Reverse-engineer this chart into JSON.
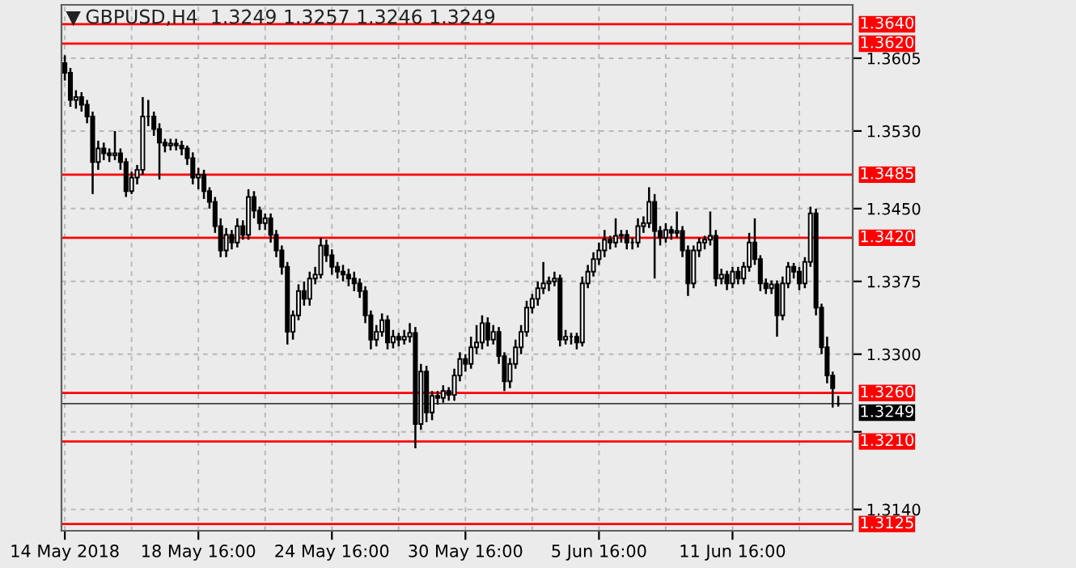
{
  "chart_data": {
    "type": "candlestick",
    "title": "GBPUSD,H4  1.3249 1.3257 1.3246 1.3249",
    "categories": [
      "14 May 2018",
      null,
      null,
      null,
      null,
      null,
      null,
      null,
      null,
      null,
      null,
      null,
      null,
      null,
      null,
      null,
      null,
      null,
      null,
      null,
      null,
      null,
      null,
      null,
      "18 May 16:00",
      null,
      null,
      null,
      null,
      null,
      null,
      null,
      null,
      null,
      null,
      null,
      null,
      null,
      null,
      null,
      null,
      null,
      null,
      null,
      null,
      null,
      null,
      null,
      "24 May 16:00",
      null,
      null,
      null,
      null,
      null,
      null,
      null,
      null,
      null,
      null,
      null,
      null,
      null,
      null,
      null,
      null,
      null,
      null,
      null,
      null,
      null,
      null,
      null,
      "30 May 16:00",
      null,
      null,
      null,
      null,
      null,
      null,
      null,
      null,
      null,
      null,
      null,
      null,
      null,
      null,
      null,
      null,
      null,
      null,
      null,
      null,
      null,
      null,
      null,
      "5 Jun 16:00",
      null,
      null,
      null,
      null,
      null,
      null,
      null,
      null,
      null,
      null,
      null,
      null,
      null,
      null,
      null,
      null,
      null,
      null,
      null,
      null,
      null,
      null,
      null,
      "11 Jun 16:00",
      null,
      null,
      null,
      null,
      null,
      null,
      null,
      null,
      null,
      null,
      null,
      null,
      null,
      null,
      null,
      null,
      null,
      null,
      null
    ],
    "ohlc": [
      [
        1.36,
        1.3608,
        1.3582,
        1.359
      ],
      [
        1.359,
        1.3595,
        1.3555,
        1.3562
      ],
      [
        1.3562,
        1.3572,
        1.3553,
        1.3565
      ],
      [
        1.3565,
        1.357,
        1.355,
        1.3557
      ],
      [
        1.3557,
        1.3562,
        1.3538,
        1.3545
      ],
      [
        1.3545,
        1.355,
        1.3465,
        1.3498
      ],
      [
        1.3498,
        1.352,
        1.349,
        1.3512
      ],
      [
        1.3512,
        1.3518,
        1.35,
        1.3507
      ],
      [
        1.3507,
        1.3512,
        1.3498,
        1.3505
      ],
      [
        1.3505,
        1.353,
        1.35,
        1.3507
      ],
      [
        1.3507,
        1.3512,
        1.349,
        1.3498
      ],
      [
        1.3498,
        1.3502,
        1.3462,
        1.3468
      ],
      [
        1.3468,
        1.3488,
        1.3465,
        1.3482
      ],
      [
        1.3482,
        1.3495,
        1.3475,
        1.349
      ],
      [
        1.349,
        1.3565,
        1.3485,
        1.3545
      ],
      [
        1.3545,
        1.3562,
        1.3535,
        1.3545
      ],
      [
        1.3545,
        1.355,
        1.3525,
        1.3532
      ],
      [
        1.3532,
        1.3538,
        1.348,
        1.3518
      ],
      [
        1.3518,
        1.3522,
        1.3508,
        1.3515
      ],
      [
        1.3515,
        1.3522,
        1.351,
        1.3517
      ],
      [
        1.3517,
        1.3522,
        1.351,
        1.3515
      ],
      [
        1.3515,
        1.352,
        1.3505,
        1.3512
      ],
      [
        1.3512,
        1.3515,
        1.3495,
        1.3502
      ],
      [
        1.3502,
        1.3508,
        1.3475,
        1.3482
      ],
      [
        1.3482,
        1.3492,
        1.347,
        1.3485
      ],
      [
        1.3485,
        1.349,
        1.346,
        1.3468
      ],
      [
        1.3468,
        1.3472,
        1.345,
        1.3457
      ],
      [
        1.3457,
        1.3462,
        1.3425,
        1.3432
      ],
      [
        1.3432,
        1.344,
        1.34,
        1.3407
      ],
      [
        1.3407,
        1.343,
        1.34,
        1.3423
      ],
      [
        1.3423,
        1.3428,
        1.3408,
        1.3415
      ],
      [
        1.3415,
        1.344,
        1.341,
        1.3432
      ],
      [
        1.3432,
        1.3438,
        1.3418,
        1.3423
      ],
      [
        1.3423,
        1.347,
        1.3418,
        1.3462
      ],
      [
        1.3462,
        1.3468,
        1.344,
        1.3448
      ],
      [
        1.3448,
        1.3452,
        1.3428,
        1.3435
      ],
      [
        1.3435,
        1.3445,
        1.3428,
        1.344
      ],
      [
        1.344,
        1.3445,
        1.3415,
        1.3423
      ],
      [
        1.3423,
        1.3428,
        1.34,
        1.3407
      ],
      [
        1.3407,
        1.3412,
        1.3382,
        1.339
      ],
      [
        1.339,
        1.3395,
        1.331,
        1.3323
      ],
      [
        1.3323,
        1.3345,
        1.3315,
        1.334
      ],
      [
        1.334,
        1.3372,
        1.3335,
        1.3365
      ],
      [
        1.3365,
        1.3375,
        1.335,
        1.3357
      ],
      [
        1.3357,
        1.3385,
        1.335,
        1.3378
      ],
      [
        1.3378,
        1.339,
        1.3372,
        1.3382
      ],
      [
        1.3382,
        1.342,
        1.3378,
        1.3412
      ],
      [
        1.3412,
        1.3418,
        1.3395,
        1.3402
      ],
      [
        1.3402,
        1.3408,
        1.3382,
        1.339
      ],
      [
        1.339,
        1.3395,
        1.3378,
        1.3385
      ],
      [
        1.3385,
        1.3392,
        1.3375,
        1.3382
      ],
      [
        1.3382,
        1.3388,
        1.337,
        1.3378
      ],
      [
        1.3378,
        1.3385,
        1.3365,
        1.3373
      ],
      [
        1.3373,
        1.3378,
        1.3358,
        1.3365
      ],
      [
        1.3365,
        1.337,
        1.3332,
        1.334
      ],
      [
        1.334,
        1.3345,
        1.3305,
        1.3315
      ],
      [
        1.3315,
        1.333,
        1.3308,
        1.3323
      ],
      [
        1.3323,
        1.3342,
        1.3318,
        1.3335
      ],
      [
        1.3335,
        1.334,
        1.3305,
        1.3312
      ],
      [
        1.3312,
        1.3325,
        1.3306,
        1.3318
      ],
      [
        1.3318,
        1.3322,
        1.3308,
        1.3315
      ],
      [
        1.3315,
        1.3325,
        1.331,
        1.3318
      ],
      [
        1.3318,
        1.3332,
        1.3312,
        1.3322
      ],
      [
        1.3322,
        1.3328,
        1.3203,
        1.3228
      ],
      [
        1.3228,
        1.329,
        1.3222,
        1.3282
      ],
      [
        1.3282,
        1.3288,
        1.323,
        1.324
      ],
      [
        1.324,
        1.3262,
        1.3232,
        1.3257
      ],
      [
        1.3257,
        1.3262,
        1.3248,
        1.3255
      ],
      [
        1.3255,
        1.3268,
        1.325,
        1.3262
      ],
      [
        1.3262,
        1.3266,
        1.3252,
        1.3258
      ],
      [
        1.3258,
        1.3285,
        1.3252,
        1.3278
      ],
      [
        1.3278,
        1.3302,
        1.3272,
        1.3295
      ],
      [
        1.3295,
        1.33,
        1.3282,
        1.329
      ],
      [
        1.329,
        1.3318,
        1.3285,
        1.3307
      ],
      [
        1.3307,
        1.333,
        1.33,
        1.3312
      ],
      [
        1.3312,
        1.334,
        1.3305,
        1.3332
      ],
      [
        1.3332,
        1.3338,
        1.3308,
        1.3315
      ],
      [
        1.3315,
        1.333,
        1.331,
        1.3323
      ],
      [
        1.3323,
        1.3328,
        1.329,
        1.3298
      ],
      [
        1.3298,
        1.3302,
        1.3262,
        1.3272
      ],
      [
        1.3272,
        1.3296,
        1.3265,
        1.329
      ],
      [
        1.329,
        1.3315,
        1.3285,
        1.3307
      ],
      [
        1.3307,
        1.333,
        1.33,
        1.3323
      ],
      [
        1.3323,
        1.3355,
        1.3318,
        1.3348
      ],
      [
        1.3348,
        1.3362,
        1.3342,
        1.3357
      ],
      [
        1.3357,
        1.3375,
        1.335,
        1.3368
      ],
      [
        1.3368,
        1.3395,
        1.3362,
        1.3373
      ],
      [
        1.3373,
        1.338,
        1.3365,
        1.3375
      ],
      [
        1.3375,
        1.3385,
        1.337,
        1.3378
      ],
      [
        1.3378,
        1.3382,
        1.3308,
        1.3315
      ],
      [
        1.3315,
        1.3325,
        1.331,
        1.3318
      ],
      [
        1.3318,
        1.3322,
        1.331,
        1.3318
      ],
      [
        1.3318,
        1.3322,
        1.3305,
        1.3312
      ],
      [
        1.3312,
        1.338,
        1.3308,
        1.3373
      ],
      [
        1.3373,
        1.3392,
        1.3368,
        1.3385
      ],
      [
        1.3385,
        1.3405,
        1.338,
        1.3398
      ],
      [
        1.3398,
        1.3415,
        1.3392,
        1.3407
      ],
      [
        1.3407,
        1.3428,
        1.34,
        1.3418
      ],
      [
        1.3418,
        1.3422,
        1.3408,
        1.3415
      ],
      [
        1.3415,
        1.344,
        1.341,
        1.3422
      ],
      [
        1.3422,
        1.3428,
        1.3415,
        1.3423
      ],
      [
        1.3423,
        1.3428,
        1.3408,
        1.3415
      ],
      [
        1.3415,
        1.342,
        1.3408,
        1.3415
      ],
      [
        1.3415,
        1.344,
        1.341,
        1.3432
      ],
      [
        1.3432,
        1.3442,
        1.3425,
        1.3435
      ],
      [
        1.3435,
        1.3472,
        1.343,
        1.3457
      ],
      [
        1.3457,
        1.3465,
        1.3378,
        1.3427
      ],
      [
        1.3427,
        1.3432,
        1.3412,
        1.342
      ],
      [
        1.342,
        1.3435,
        1.3415,
        1.3428
      ],
      [
        1.3428,
        1.3432,
        1.3418,
        1.3425
      ],
      [
        1.3425,
        1.3447,
        1.342,
        1.3427
      ],
      [
        1.3427,
        1.3432,
        1.34,
        1.3407
      ],
      [
        1.3407,
        1.3412,
        1.336,
        1.3373
      ],
      [
        1.3373,
        1.3412,
        1.3368,
        1.3407
      ],
      [
        1.3407,
        1.342,
        1.34,
        1.3415
      ],
      [
        1.3415,
        1.3422,
        1.3408,
        1.3418
      ],
      [
        1.3418,
        1.3447,
        1.3412,
        1.3422
      ],
      [
        1.3422,
        1.3428,
        1.337,
        1.3378
      ],
      [
        1.3378,
        1.3388,
        1.3372,
        1.3382
      ],
      [
        1.3382,
        1.3386,
        1.3366,
        1.3373
      ],
      [
        1.3373,
        1.339,
        1.3368,
        1.3385
      ],
      [
        1.3385,
        1.339,
        1.3372,
        1.3378
      ],
      [
        1.3378,
        1.3395,
        1.3372,
        1.339
      ],
      [
        1.339,
        1.3425,
        1.3385,
        1.3415
      ],
      [
        1.3415,
        1.344,
        1.3392,
        1.3398
      ],
      [
        1.3398,
        1.3402,
        1.3365,
        1.3373
      ],
      [
        1.3373,
        1.3378,
        1.3362,
        1.3368
      ],
      [
        1.3368,
        1.3376,
        1.3362,
        1.3372
      ],
      [
        1.3372,
        1.3376,
        1.3318,
        1.334
      ],
      [
        1.334,
        1.338,
        1.3335,
        1.3373
      ],
      [
        1.3373,
        1.3395,
        1.3368,
        1.339
      ],
      [
        1.339,
        1.3394,
        1.3378,
        1.3385
      ],
      [
        1.3385,
        1.339,
        1.3366,
        1.3373
      ],
      [
        1.3373,
        1.34,
        1.3368,
        1.3395
      ],
      [
        1.3395,
        1.3452,
        1.339,
        1.3445
      ],
      [
        1.3445,
        1.345,
        1.334,
        1.3348
      ],
      [
        1.3348,
        1.3352,
        1.33,
        1.3307
      ],
      [
        1.3307,
        1.3318,
        1.327,
        1.3278
      ],
      [
        1.3278,
        1.3282,
        1.3245,
        1.3265
      ],
      [
        1.3249,
        1.3257,
        1.3246,
        1.3249
      ]
    ],
    "color": "#000000",
    "ylim": [
      1.3118,
      1.366
    ],
    "yticks": [
      {
        "value": 1.3605,
        "label": "1.3605"
      },
      {
        "value": 1.353,
        "label": "1.3530"
      },
      {
        "value": 1.345,
        "label": "1.3450"
      },
      1.3375,
      {
        "value": 1.33,
        "label": "1.3300"
      },
      {
        "value": 1.322,
        "label": null
      },
      {
        "value": 1.314,
        "label": "1.3140"
      }
    ],
    "ref_lines": [
      {
        "axis": "y",
        "value": 1.364,
        "label": "1.3640",
        "color": "#ff0000"
      },
      {
        "axis": "y",
        "value": 1.362,
        "label": "1.3620",
        "color": "#ff0000"
      },
      {
        "axis": "y",
        "value": 1.3485,
        "label": "1.3485",
        "color": "#ff0000"
      },
      {
        "axis": "y",
        "value": 1.342,
        "label": "1.3420",
        "color": "#ff0000"
      },
      {
        "axis": "y",
        "value": 1.326,
        "label": "1.3260",
        "color": "#ff0000"
      },
      {
        "axis": "y",
        "value": 1.321,
        "label": "1.3210",
        "color": "#ff0000"
      },
      {
        "axis": "y",
        "value": 1.3125,
        "label": "1.3125",
        "color": "#ff0000"
      },
      {
        "axis": "y",
        "value": 1.3249,
        "label": "1.3249",
        "color": "#000000"
      }
    ],
    "grid": true
  }
}
